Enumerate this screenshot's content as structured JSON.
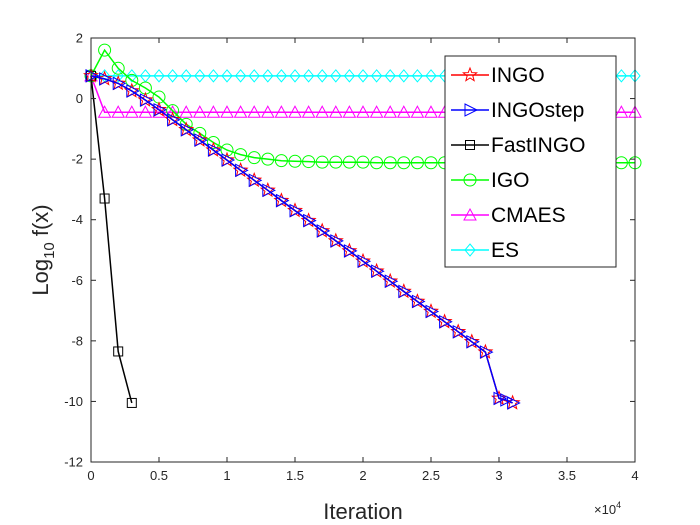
{
  "chart_data": {
    "type": "line",
    "title": "",
    "xlabel": "Iteration",
    "ylabel_base": "Log",
    "ylabel_sub": "10",
    "ylabel_rest": " f(x)",
    "x_exponent_label": "×10",
    "x_exponent_power": "4",
    "xlim": [
      0,
      4
    ],
    "ylim": [
      -12,
      2
    ],
    "xticks": [
      0,
      0.5,
      1,
      1.5,
      2,
      2.5,
      3,
      3.5,
      4
    ],
    "xtick_labels": [
      "0",
      "0.5",
      "1",
      "1.5",
      "2",
      "2.5",
      "3",
      "3.5",
      "4"
    ],
    "yticks": [
      2,
      0,
      -2,
      -4,
      -6,
      -8,
      -10,
      -12
    ],
    "ytick_labels": [
      "2",
      "0",
      "-2",
      "-4",
      "-6",
      "-8",
      "-10",
      "-12"
    ],
    "legend_position": "top-right",
    "series": [
      {
        "name": "INGO",
        "color": "#ff0000",
        "marker": "star",
        "x": [
          0,
          0.1,
          0.2,
          0.3,
          0.4,
          0.5,
          0.6,
          0.7,
          0.8,
          0.9,
          1.0,
          1.1,
          1.2,
          1.3,
          1.4,
          1.5,
          1.6,
          1.7,
          1.8,
          1.9,
          2.0,
          2.1,
          2.2,
          2.3,
          2.4,
          2.5,
          2.6,
          2.7,
          2.8,
          2.9,
          3.0,
          3.1
        ],
        "y": [
          0.75,
          0.65,
          0.5,
          0.25,
          -0.05,
          -0.37,
          -0.7,
          -1.03,
          -1.37,
          -1.7,
          -2.03,
          -2.37,
          -2.7,
          -3.03,
          -3.37,
          -3.7,
          -4.03,
          -4.37,
          -4.7,
          -5.03,
          -5.37,
          -5.7,
          -6.03,
          -6.37,
          -6.7,
          -7.03,
          -7.37,
          -7.7,
          -8.03,
          -8.37,
          -9.9,
          -10.05
        ]
      },
      {
        "name": "INGOstep",
        "color": "#0000ff",
        "marker": "triangle-right",
        "x": [
          0,
          0.1,
          0.2,
          0.3,
          0.4,
          0.5,
          0.6,
          0.7,
          0.8,
          0.9,
          1.0,
          1.1,
          1.2,
          1.3,
          1.4,
          1.5,
          1.6,
          1.7,
          1.8,
          1.9,
          2.0,
          2.1,
          2.2,
          2.3,
          2.4,
          2.5,
          2.6,
          2.7,
          2.8,
          2.9,
          3.0,
          3.05,
          3.1
        ],
        "y": [
          0.75,
          0.65,
          0.5,
          0.25,
          -0.05,
          -0.37,
          -0.7,
          -1.03,
          -1.37,
          -1.7,
          -2.03,
          -2.37,
          -2.7,
          -3.03,
          -3.37,
          -3.7,
          -4.03,
          -4.37,
          -4.7,
          -5.03,
          -5.37,
          -5.7,
          -6.03,
          -6.37,
          -6.7,
          -7.03,
          -7.37,
          -7.7,
          -8.03,
          -8.37,
          -9.9,
          -9.95,
          -10.05
        ]
      },
      {
        "name": "FastINGO",
        "color": "#000000",
        "marker": "square",
        "x": [
          0,
          0.1,
          0.2,
          0.3
        ],
        "y": [
          0.75,
          -3.3,
          -8.35,
          -10.05
        ]
      },
      {
        "name": "IGO",
        "color": "#00ff00",
        "marker": "circle",
        "x": [
          0,
          0.1,
          0.2,
          0.3,
          0.4,
          0.5,
          0.6,
          0.7,
          0.8,
          0.9,
          1.0,
          1.1,
          1.2,
          1.3,
          1.4,
          1.5,
          1.6,
          1.7,
          1.8,
          1.9,
          2.0,
          2.1,
          2.2,
          2.3,
          2.4,
          2.5,
          2.6,
          2.7,
          2.8,
          2.9,
          3.0,
          3.1,
          3.2,
          3.3,
          3.4,
          3.5,
          3.6,
          3.7,
          3.8,
          3.9,
          4.0
        ],
        "y": [
          0.75,
          1.6,
          1.0,
          0.6,
          0.35,
          0.05,
          -0.4,
          -0.85,
          -1.15,
          -1.45,
          -1.7,
          -1.85,
          -1.95,
          -2.0,
          -2.05,
          -2.07,
          -2.08,
          -2.1,
          -2.1,
          -2.1,
          -2.1,
          -2.12,
          -2.12,
          -2.12,
          -2.12,
          -2.12,
          -2.12,
          -2.12,
          -2.12,
          -2.12,
          -2.12,
          -2.12,
          -2.12,
          -2.12,
          -2.12,
          -2.12,
          -2.12,
          -2.12,
          -2.12,
          -2.12,
          -2.12
        ]
      },
      {
        "name": "CMAES",
        "color": "#ff00ff",
        "marker": "triangle-up",
        "x": [
          0,
          0.1,
          0.2,
          0.3,
          0.4,
          0.5,
          0.6,
          0.7,
          0.8,
          0.9,
          1.0,
          1.1,
          1.2,
          1.3,
          1.4,
          1.5,
          1.6,
          1.7,
          1.8,
          1.9,
          2.0,
          2.1,
          2.2,
          2.3,
          2.4,
          2.5,
          2.6,
          2.7,
          2.8,
          2.9,
          3.0,
          3.1,
          3.2,
          3.3,
          3.4,
          3.5,
          3.6,
          3.7,
          3.8,
          3.9,
          4.0
        ],
        "y": [
          0.75,
          -0.45,
          -0.45,
          -0.45,
          -0.45,
          -0.45,
          -0.45,
          -0.45,
          -0.45,
          -0.45,
          -0.45,
          -0.45,
          -0.45,
          -0.45,
          -0.45,
          -0.45,
          -0.45,
          -0.45,
          -0.45,
          -0.45,
          -0.45,
          -0.45,
          -0.45,
          -0.45,
          -0.45,
          -0.45,
          -0.45,
          -0.45,
          -0.45,
          -0.45,
          -0.45,
          -0.45,
          -0.45,
          -0.45,
          -0.45,
          -0.45,
          -0.45,
          -0.45,
          -0.45,
          -0.45,
          -0.45
        ]
      },
      {
        "name": "ES",
        "color": "#00ffff",
        "marker": "diamond",
        "x": [
          0,
          0.1,
          0.2,
          0.3,
          0.4,
          0.5,
          0.6,
          0.7,
          0.8,
          0.9,
          1.0,
          1.1,
          1.2,
          1.3,
          1.4,
          1.5,
          1.6,
          1.7,
          1.8,
          1.9,
          2.0,
          2.1,
          2.2,
          2.3,
          2.4,
          2.5,
          2.6,
          2.7,
          2.8,
          2.9,
          3.0,
          3.1,
          3.2,
          3.3,
          3.4,
          3.5,
          3.6,
          3.7,
          3.8,
          3.9,
          4.0
        ],
        "y": [
          0.75,
          0.75,
          0.75,
          0.75,
          0.75,
          0.75,
          0.75,
          0.75,
          0.75,
          0.75,
          0.75,
          0.75,
          0.75,
          0.75,
          0.75,
          0.75,
          0.75,
          0.75,
          0.75,
          0.75,
          0.75,
          0.75,
          0.75,
          0.75,
          0.75,
          0.75,
          0.75,
          0.75,
          0.75,
          0.75,
          0.75,
          0.75,
          0.75,
          0.75,
          0.75,
          0.75,
          0.75,
          0.75,
          0.75,
          0.75,
          0.75
        ]
      }
    ]
  }
}
